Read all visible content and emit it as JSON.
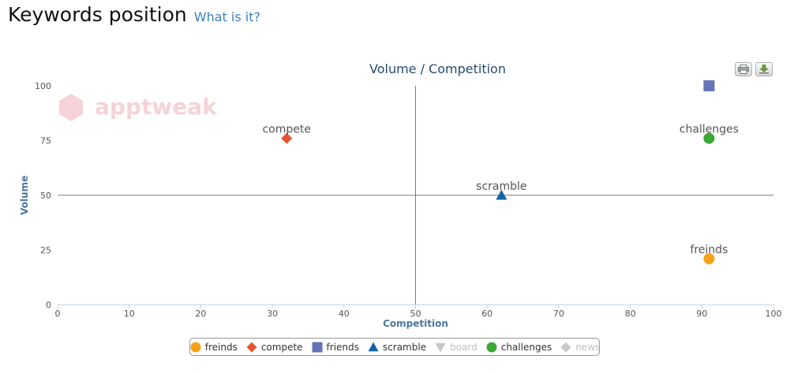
{
  "header": {
    "title": "Keywords position",
    "help_link": "What is it?"
  },
  "watermark": "apptweak",
  "toolbar": {
    "print_icon": "printer-icon",
    "export_icon": "download-icon"
  },
  "colors": {
    "freinds": "#f7a21b",
    "compete": "#e8542f",
    "friends": "#6674b5",
    "scramble": "#1163a5",
    "board": "#c8c8c8",
    "challenges": "#3aa935",
    "news": "#c8c8c8",
    "axis_title": "#4d759e"
  },
  "chart_data": {
    "type": "scatter",
    "title": "Volume / Competition",
    "xlabel": "Competition",
    "ylabel": "Volume",
    "xlim": [
      0,
      100
    ],
    "ylim": [
      0,
      100
    ],
    "xticks": [
      "0",
      "10",
      "20",
      "30",
      "40",
      "50",
      "60",
      "70",
      "80",
      "90",
      "100"
    ],
    "yticks": [
      "0",
      "25",
      "50",
      "75",
      "100"
    ],
    "crosshair": {
      "x": 50,
      "y": 50
    },
    "legend_position": "bottom-center",
    "series": [
      {
        "name": "freinds",
        "marker": "circle",
        "visible": true,
        "points": [
          {
            "x": 91,
            "y": 21,
            "label": "freinds"
          }
        ]
      },
      {
        "name": "compete",
        "marker": "diamond",
        "visible": true,
        "points": [
          {
            "x": 32,
            "y": 76,
            "label": "compete"
          }
        ]
      },
      {
        "name": "friends",
        "marker": "square",
        "visible": true,
        "points": [
          {
            "x": 91,
            "y": 100,
            "label": ""
          }
        ]
      },
      {
        "name": "scramble",
        "marker": "triangle",
        "visible": true,
        "points": [
          {
            "x": 62,
            "y": 50,
            "label": "scramble"
          }
        ]
      },
      {
        "name": "board",
        "marker": "triangle-down",
        "visible": false,
        "points": []
      },
      {
        "name": "challenges",
        "marker": "circle",
        "visible": true,
        "points": [
          {
            "x": 91,
            "y": 76,
            "label": "challenges"
          }
        ]
      },
      {
        "name": "news",
        "marker": "diamond",
        "visible": false,
        "points": []
      }
    ]
  }
}
